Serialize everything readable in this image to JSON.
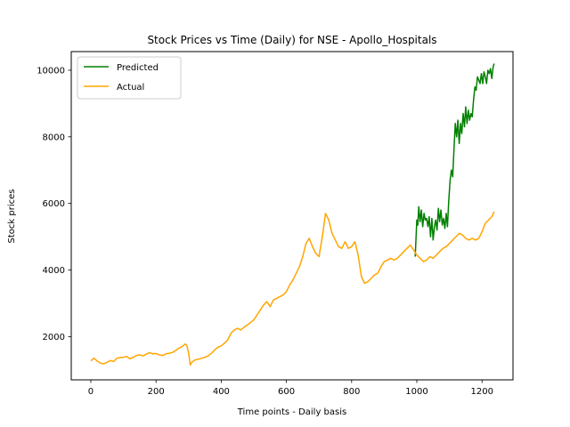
{
  "chart_data": {
    "type": "line",
    "title": "Stock Prices vs Time (Daily) for NSE - Apollo_Hospitals",
    "xlabel": "Time points - Daily basis",
    "ylabel": "Stock prices",
    "xlim": [
      -60,
      1295
    ],
    "ylim": [
      700,
      10560
    ],
    "xticks": [
      0,
      200,
      400,
      600,
      800,
      1000,
      1200
    ],
    "yticks": [
      2000,
      4000,
      6000,
      8000,
      10000
    ],
    "grid": false,
    "legend": {
      "position": "upper-left",
      "entries": [
        "Predicted",
        "Actual"
      ]
    },
    "series": [
      {
        "name": "Predicted",
        "color": "#008000",
        "points": [
          [
            995,
            4400
          ],
          [
            1000,
            5500
          ],
          [
            1003,
            5350
          ],
          [
            1006,
            5900
          ],
          [
            1010,
            5450
          ],
          [
            1014,
            5800
          ],
          [
            1018,
            5300
          ],
          [
            1022,
            5700
          ],
          [
            1026,
            5500
          ],
          [
            1030,
            5550
          ],
          [
            1034,
            5300
          ],
          [
            1038,
            5600
          ],
          [
            1042,
            5000
          ],
          [
            1046,
            5550
          ],
          [
            1050,
            4900
          ],
          [
            1054,
            5300
          ],
          [
            1058,
            5500
          ],
          [
            1062,
            5200
          ],
          [
            1066,
            5850
          ],
          [
            1070,
            5450
          ],
          [
            1074,
            5800
          ],
          [
            1078,
            5350
          ],
          [
            1082,
            5550
          ],
          [
            1086,
            5250
          ],
          [
            1090,
            5700
          ],
          [
            1094,
            5300
          ],
          [
            1098,
            6100
          ],
          [
            1102,
            6700
          ],
          [
            1106,
            7000
          ],
          [
            1110,
            6800
          ],
          [
            1114,
            7600
          ],
          [
            1118,
            8400
          ],
          [
            1122,
            8000
          ],
          [
            1126,
            8500
          ],
          [
            1130,
            7800
          ],
          [
            1134,
            8400
          ],
          [
            1138,
            8100
          ],
          [
            1142,
            8700
          ],
          [
            1146,
            8300
          ],
          [
            1150,
            8900
          ],
          [
            1154,
            8400
          ],
          [
            1158,
            8800
          ],
          [
            1162,
            8500
          ],
          [
            1166,
            8700
          ],
          [
            1170,
            8600
          ],
          [
            1174,
            9100
          ],
          [
            1178,
            9500
          ],
          [
            1182,
            9400
          ],
          [
            1186,
            9800
          ],
          [
            1190,
            9700
          ],
          [
            1194,
            9600
          ],
          [
            1198,
            9900
          ],
          [
            1202,
            9600
          ],
          [
            1206,
            9950
          ],
          [
            1210,
            9800
          ],
          [
            1214,
            9600
          ],
          [
            1218,
            10000
          ],
          [
            1222,
            9900
          ],
          [
            1226,
            10050
          ],
          [
            1230,
            9750
          ],
          [
            1234,
            10100
          ],
          [
            1237,
            10200
          ]
        ]
      },
      {
        "name": "Actual",
        "color": "#ffa500",
        "points": [
          [
            0,
            1270
          ],
          [
            10,
            1350
          ],
          [
            20,
            1260
          ],
          [
            30,
            1200
          ],
          [
            40,
            1180
          ],
          [
            50,
            1230
          ],
          [
            60,
            1280
          ],
          [
            70,
            1250
          ],
          [
            80,
            1350
          ],
          [
            90,
            1370
          ],
          [
            100,
            1380
          ],
          [
            110,
            1400
          ],
          [
            120,
            1330
          ],
          [
            130,
            1380
          ],
          [
            140,
            1430
          ],
          [
            150,
            1450
          ],
          [
            160,
            1420
          ],
          [
            170,
            1470
          ],
          [
            180,
            1520
          ],
          [
            190,
            1480
          ],
          [
            200,
            1490
          ],
          [
            210,
            1450
          ],
          [
            220,
            1430
          ],
          [
            230,
            1480
          ],
          [
            240,
            1500
          ],
          [
            250,
            1520
          ],
          [
            260,
            1580
          ],
          [
            270,
            1650
          ],
          [
            280,
            1700
          ],
          [
            290,
            1780
          ],
          [
            295,
            1720
          ],
          [
            300,
            1500
          ],
          [
            305,
            1150
          ],
          [
            310,
            1230
          ],
          [
            320,
            1300
          ],
          [
            330,
            1320
          ],
          [
            340,
            1350
          ],
          [
            350,
            1380
          ],
          [
            360,
            1420
          ],
          [
            370,
            1500
          ],
          [
            380,
            1600
          ],
          [
            390,
            1680
          ],
          [
            400,
            1720
          ],
          [
            410,
            1800
          ],
          [
            420,
            1900
          ],
          [
            430,
            2100
          ],
          [
            440,
            2200
          ],
          [
            450,
            2250
          ],
          [
            460,
            2200
          ],
          [
            470,
            2280
          ],
          [
            480,
            2350
          ],
          [
            490,
            2420
          ],
          [
            500,
            2500
          ],
          [
            510,
            2650
          ],
          [
            520,
            2800
          ],
          [
            530,
            2950
          ],
          [
            540,
            3050
          ],
          [
            550,
            2900
          ],
          [
            560,
            3100
          ],
          [
            570,
            3150
          ],
          [
            580,
            3200
          ],
          [
            590,
            3250
          ],
          [
            600,
            3350
          ],
          [
            610,
            3550
          ],
          [
            620,
            3700
          ],
          [
            630,
            3900
          ],
          [
            640,
            4100
          ],
          [
            650,
            4400
          ],
          [
            660,
            4800
          ],
          [
            670,
            4950
          ],
          [
            680,
            4700
          ],
          [
            690,
            4500
          ],
          [
            700,
            4400
          ],
          [
            710,
            5000
          ],
          [
            720,
            5700
          ],
          [
            730,
            5500
          ],
          [
            740,
            5100
          ],
          [
            750,
            4900
          ],
          [
            760,
            4700
          ],
          [
            770,
            4650
          ],
          [
            780,
            4850
          ],
          [
            790,
            4650
          ],
          [
            800,
            4700
          ],
          [
            810,
            4850
          ],
          [
            820,
            4450
          ],
          [
            830,
            3800
          ],
          [
            840,
            3600
          ],
          [
            850,
            3650
          ],
          [
            860,
            3750
          ],
          [
            870,
            3850
          ],
          [
            880,
            3900
          ],
          [
            890,
            4100
          ],
          [
            900,
            4250
          ],
          [
            910,
            4300
          ],
          [
            920,
            4350
          ],
          [
            930,
            4300
          ],
          [
            940,
            4350
          ],
          [
            950,
            4450
          ],
          [
            960,
            4550
          ],
          [
            970,
            4650
          ],
          [
            980,
            4750
          ],
          [
            990,
            4600
          ],
          [
            1000,
            4450
          ],
          [
            1010,
            4350
          ],
          [
            1020,
            4250
          ],
          [
            1030,
            4300
          ],
          [
            1040,
            4400
          ],
          [
            1050,
            4350
          ],
          [
            1060,
            4450
          ],
          [
            1070,
            4550
          ],
          [
            1080,
            4650
          ],
          [
            1090,
            4700
          ],
          [
            1100,
            4800
          ],
          [
            1110,
            4900
          ],
          [
            1120,
            5000
          ],
          [
            1130,
            5100
          ],
          [
            1140,
            5050
          ],
          [
            1150,
            4950
          ],
          [
            1160,
            4900
          ],
          [
            1170,
            4950
          ],
          [
            1180,
            4900
          ],
          [
            1190,
            4950
          ],
          [
            1200,
            5150
          ],
          [
            1210,
            5400
          ],
          [
            1220,
            5500
          ],
          [
            1230,
            5600
          ],
          [
            1237,
            5750
          ]
        ]
      }
    ]
  }
}
